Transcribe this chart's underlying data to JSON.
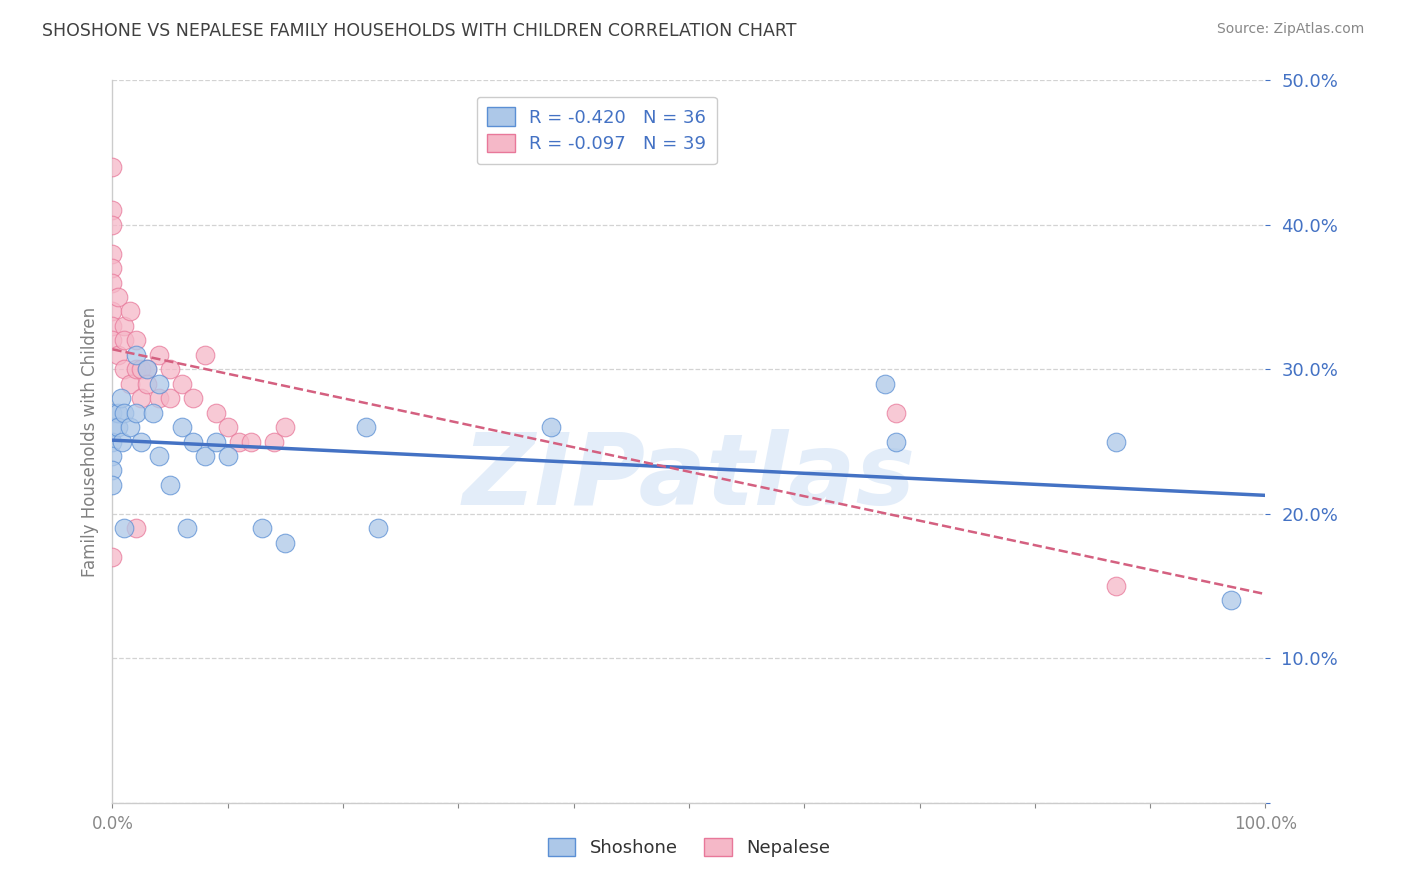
{
  "title": "SHOSHONE VS NEPALESE FAMILY HOUSEHOLDS WITH CHILDREN CORRELATION CHART",
  "source": "Source: ZipAtlas.com",
  "ylabel": "Family Households with Children",
  "shoshone_R": -0.42,
  "shoshone_N": 36,
  "nepalese_R": -0.097,
  "nepalese_N": 39,
  "shoshone_color": "#adc8e8",
  "nepalese_color": "#f5b8c8",
  "shoshone_edge_color": "#5b8fd4",
  "nepalese_edge_color": "#e8789a",
  "shoshone_line_color": "#4472c4",
  "nepalese_line_color": "#d46080",
  "watermark": "ZIPatlas",
  "xlim": [
    0,
    1.0
  ],
  "ylim": [
    0,
    0.5
  ],
  "shoshone_x": [
    0.0,
    0.0,
    0.0,
    0.0,
    0.0,
    0.0,
    0.005,
    0.005,
    0.007,
    0.008,
    0.01,
    0.01,
    0.015,
    0.02,
    0.02,
    0.025,
    0.03,
    0.035,
    0.04,
    0.04,
    0.05,
    0.06,
    0.065,
    0.07,
    0.08,
    0.09,
    0.1,
    0.13,
    0.15,
    0.22,
    0.23,
    0.38,
    0.67,
    0.68,
    0.87,
    0.97
  ],
  "shoshone_y": [
    0.27,
    0.26,
    0.25,
    0.24,
    0.23,
    0.22,
    0.27,
    0.26,
    0.28,
    0.25,
    0.27,
    0.19,
    0.26,
    0.31,
    0.27,
    0.25,
    0.3,
    0.27,
    0.29,
    0.24,
    0.22,
    0.26,
    0.19,
    0.25,
    0.24,
    0.25,
    0.24,
    0.19,
    0.18,
    0.26,
    0.19,
    0.26,
    0.29,
    0.25,
    0.25,
    0.14
  ],
  "nepalese_x": [
    0.0,
    0.0,
    0.0,
    0.0,
    0.0,
    0.0,
    0.0,
    0.0,
    0.0,
    0.0,
    0.005,
    0.005,
    0.01,
    0.01,
    0.01,
    0.015,
    0.015,
    0.02,
    0.02,
    0.02,
    0.025,
    0.025,
    0.03,
    0.03,
    0.04,
    0.04,
    0.05,
    0.05,
    0.06,
    0.07,
    0.08,
    0.09,
    0.1,
    0.11,
    0.12,
    0.14,
    0.15,
    0.68,
    0.87
  ],
  "nepalese_y": [
    0.44,
    0.41,
    0.4,
    0.38,
    0.37,
    0.36,
    0.34,
    0.33,
    0.32,
    0.17,
    0.35,
    0.31,
    0.33,
    0.32,
    0.3,
    0.34,
    0.29,
    0.32,
    0.3,
    0.19,
    0.3,
    0.28,
    0.3,
    0.29,
    0.31,
    0.28,
    0.3,
    0.28,
    0.29,
    0.28,
    0.31,
    0.27,
    0.26,
    0.25,
    0.25,
    0.25,
    0.26,
    0.27,
    0.15
  ],
  "background_color": "#ffffff",
  "grid_color": "#c8c8c8",
  "title_color": "#404040",
  "legend_text_color": "#4472c4",
  "axis_tick_color": "#4472c4",
  "ylabel_color": "#808080"
}
